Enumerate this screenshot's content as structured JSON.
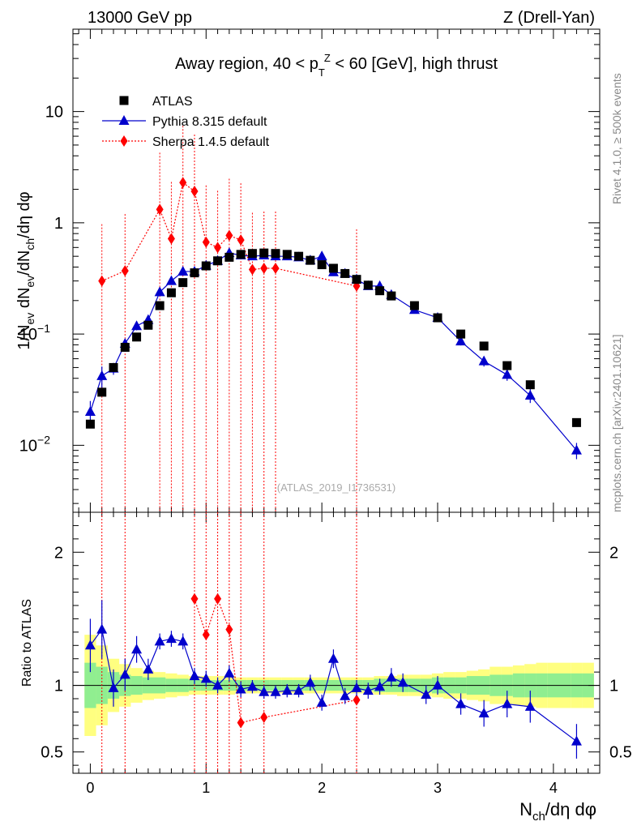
{
  "header": {
    "energy_label": "13000 GeV pp",
    "process_label": "Z (Drell-Yan)",
    "plot_title": "Away region, 40 < p_T^Z < 60 [GeV], high thrust",
    "side_label_top": "Rivet 4.1.0, ≥ 500k events",
    "side_label_bottom": "mcplots.cern.ch [arXiv:2401.10621]",
    "analysis_label": "(ATLAS_2019_I1736531)"
  },
  "chart_data": {
    "type": "scatter",
    "xlabel": "N_ch/dη dφ",
    "ylabel_main": "1/N_ev dN_ev/dN_ch/dη dφ",
    "ylabel_ratio": "Ratio to ATLAS",
    "xlim": [
      -0.15,
      4.4
    ],
    "ylim_main": [
      0.0025,
      55
    ],
    "ylim_ratio": [
      0.34,
      2.3
    ],
    "yscale_main": "log",
    "legend_position": "top-left",
    "main_y_ticks": [
      {
        "value": 10,
        "label": "10"
      },
      {
        "value": 1,
        "label": "1"
      },
      {
        "value": 0.1,
        "label": "10^-1"
      },
      {
        "value": 0.01,
        "label": "10^-2"
      }
    ],
    "x_ticks": [
      {
        "value": 0,
        "label": "0"
      },
      {
        "value": 1,
        "label": "1"
      },
      {
        "value": 2,
        "label": "2"
      },
      {
        "value": 3,
        "label": "3"
      },
      {
        "value": 4,
        "label": "4"
      }
    ],
    "ratio_y_ticks": [
      {
        "value": 2,
        "label": "2"
      },
      {
        "value": 1,
        "label": "1"
      },
      {
        "value": 0.5,
        "label": "0.5"
      }
    ],
    "series": [
      {
        "name": "ATLAS",
        "color": "#000000",
        "marker": "square",
        "x": [
          0.0,
          0.1,
          0.2,
          0.3,
          0.4,
          0.5,
          0.6,
          0.7,
          0.8,
          0.9,
          1.0,
          1.1,
          1.2,
          1.3,
          1.4,
          1.5,
          1.6,
          1.7,
          1.8,
          1.9,
          2.0,
          2.1,
          2.2,
          2.3,
          2.4,
          2.5,
          2.6,
          2.8,
          3.0,
          3.2,
          3.4,
          3.6,
          3.8,
          4.2
        ],
        "values": [
          0.0155,
          0.03,
          0.05,
          0.076,
          0.094,
          0.12,
          0.18,
          0.235,
          0.29,
          0.355,
          0.41,
          0.455,
          0.49,
          0.52,
          0.53,
          0.535,
          0.53,
          0.52,
          0.5,
          0.46,
          0.42,
          0.39,
          0.35,
          0.31,
          0.275,
          0.245,
          0.22,
          0.18,
          0.14,
          0.1,
          0.078,
          0.052,
          0.035,
          0.016
        ]
      },
      {
        "name": "Pythia 8.315 default",
        "color": "#0000cc",
        "marker": "triangle",
        "line": "solid",
        "x": [
          0.0,
          0.1,
          0.2,
          0.3,
          0.4,
          0.5,
          0.6,
          0.7,
          0.8,
          0.9,
          1.0,
          1.1,
          1.2,
          1.3,
          1.4,
          1.5,
          1.6,
          1.7,
          1.8,
          1.9,
          2.0,
          2.1,
          2.2,
          2.3,
          2.4,
          2.5,
          2.6,
          2.8,
          3.0,
          3.2,
          3.4,
          3.6,
          3.8,
          4.2
        ],
        "values": [
          0.02,
          0.042,
          0.049,
          0.082,
          0.118,
          0.134,
          0.238,
          0.3,
          0.365,
          0.365,
          0.413,
          0.455,
          0.535,
          0.51,
          0.5,
          0.51,
          0.5,
          0.5,
          0.49,
          0.46,
          0.5,
          0.36,
          0.35,
          0.31,
          0.27,
          0.27,
          0.225,
          0.165,
          0.14,
          0.086,
          0.057,
          0.043,
          0.028,
          0.009
        ],
        "errors": [
          0.005,
          0.009,
          0.006,
          0.008,
          0.01,
          0.01,
          0.018,
          0.02,
          0.02,
          0.02,
          0.02,
          0.02,
          0.02,
          0.02,
          0.02,
          0.02,
          0.02,
          0.02,
          0.02,
          0.02,
          0.02,
          0.02,
          0.015,
          0.015,
          0.012,
          0.012,
          0.01,
          0.01,
          0.008,
          0.007,
          0.006,
          0.005,
          0.004,
          0.0015
        ],
        "ratio": [
          1.3,
          1.42,
          0.98,
          1.08,
          1.27,
          1.12,
          1.33,
          1.35,
          1.33,
          1.07,
          1.05,
          1.0,
          1.09,
          0.97,
          0.99,
          0.95,
          0.95,
          0.96,
          0.96,
          1.02,
          0.87,
          1.2,
          0.92,
          0.98,
          0.96,
          0.99,
          1.06,
          1.02,
          0.93,
          1.0,
          0.86,
          0.79,
          0.86,
          0.84,
          0.58
        ],
        "ratio_x": [
          0.0,
          0.1,
          0.2,
          0.3,
          0.4,
          0.5,
          0.6,
          0.7,
          0.8,
          0.9,
          1.0,
          1.1,
          1.2,
          1.3,
          1.4,
          1.5,
          1.6,
          1.7,
          1.8,
          1.9,
          2.0,
          2.1,
          2.2,
          2.3,
          2.4,
          2.5,
          2.6,
          2.7,
          2.9,
          3.0,
          3.2,
          3.4,
          3.6,
          3.8,
          4.2
        ],
        "ratio_errors": [
          0.2,
          0.22,
          0.14,
          0.12,
          0.1,
          0.08,
          0.06,
          0.06,
          0.06,
          0.06,
          0.06,
          0.06,
          0.06,
          0.06,
          0.05,
          0.05,
          0.05,
          0.05,
          0.05,
          0.06,
          0.06,
          0.07,
          0.06,
          0.06,
          0.06,
          0.06,
          0.07,
          0.07,
          0.07,
          0.07,
          0.08,
          0.1,
          0.1,
          0.12,
          0.13
        ]
      },
      {
        "name": "Sherpa 1.4.5 default",
        "color": "#ff0000",
        "marker": "diamond",
        "line": "dotted",
        "x": [
          0.1,
          0.3,
          0.6,
          0.7,
          0.8,
          0.9,
          1.0,
          1.1,
          1.2,
          1.3,
          1.4,
          1.5,
          1.6,
          2.3
        ],
        "values": [
          0.3,
          0.37,
          1.32,
          0.72,
          2.3,
          1.92,
          0.67,
          0.6,
          0.77,
          0.7,
          0.38,
          0.39,
          0.39,
          0.27
        ],
        "ratio_x": [
          0.9,
          1.0,
          1.1,
          1.2,
          1.3,
          1.5,
          2.3
        ],
        "ratio": [
          1.65,
          1.38,
          1.65,
          1.42,
          0.72,
          0.76,
          0.89
        ]
      }
    ],
    "ratio_bands": {
      "edges": [
        -0.05,
        0.05,
        0.15,
        0.25,
        0.35,
        0.45,
        0.55,
        0.65,
        0.75,
        0.85,
        0.95,
        1.05,
        1.15,
        1.25,
        1.35,
        1.45,
        1.55,
        1.65,
        1.75,
        1.85,
        1.95,
        2.05,
        2.15,
        2.25,
        2.35,
        2.45,
        2.55,
        2.65,
        2.75,
        2.85,
        2.95,
        3.05,
        3.15,
        3.25,
        3.35,
        3.45,
        3.55,
        3.65,
        3.75,
        3.85,
        3.95,
        4.05,
        4.15,
        4.25,
        4.35
      ],
      "inner": [
        0.17,
        0.14,
        0.1,
        0.08,
        0.07,
        0.06,
        0.06,
        0.05,
        0.05,
        0.04,
        0.04,
        0.04,
        0.04,
        0.04,
        0.04,
        0.04,
        0.04,
        0.04,
        0.04,
        0.04,
        0.04,
        0.04,
        0.04,
        0.04,
        0.04,
        0.05,
        0.05,
        0.05,
        0.05,
        0.05,
        0.06,
        0.06,
        0.06,
        0.07,
        0.07,
        0.08,
        0.08,
        0.09,
        0.09,
        0.09,
        0.09,
        0.09,
        0.09,
        0.09
      ],
      "outer": [
        0.38,
        0.3,
        0.2,
        0.16,
        0.13,
        0.11,
        0.1,
        0.09,
        0.08,
        0.07,
        0.07,
        0.07,
        0.07,
        0.06,
        0.06,
        0.06,
        0.06,
        0.06,
        0.06,
        0.06,
        0.06,
        0.06,
        0.06,
        0.06,
        0.06,
        0.07,
        0.07,
        0.08,
        0.08,
        0.08,
        0.09,
        0.1,
        0.1,
        0.11,
        0.12,
        0.14,
        0.14,
        0.15,
        0.16,
        0.17,
        0.17,
        0.17,
        0.17,
        0.17
      ]
    }
  }
}
